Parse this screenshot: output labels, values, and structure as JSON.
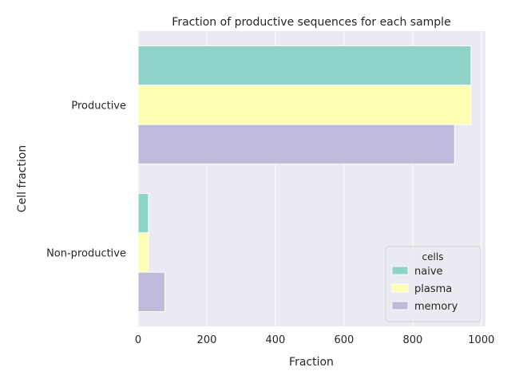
{
  "chart_data": {
    "type": "bar",
    "orientation": "horizontal",
    "title": "Fraction of productive sequences for each sample",
    "xlabel": "Fraction",
    "ylabel": "Cell fraction",
    "categories": [
      "Productive",
      "Non-productive"
    ],
    "series": [
      {
        "name": "naive",
        "values": [
          970,
          30
        ],
        "color": "#8dd3c7"
      },
      {
        "name": "plasma",
        "values": [
          970,
          30
        ],
        "color": "#ffffb3"
      },
      {
        "name": "memory",
        "values": [
          922,
          78
        ],
        "color": "#bebada"
      }
    ],
    "xlim": [
      0,
      1012
    ],
    "xticks": [
      0,
      200,
      400,
      600,
      800,
      1000
    ],
    "grid": true,
    "background": "#eaeaf2",
    "legend": {
      "title": "cells",
      "placement": "lower-right"
    }
  }
}
